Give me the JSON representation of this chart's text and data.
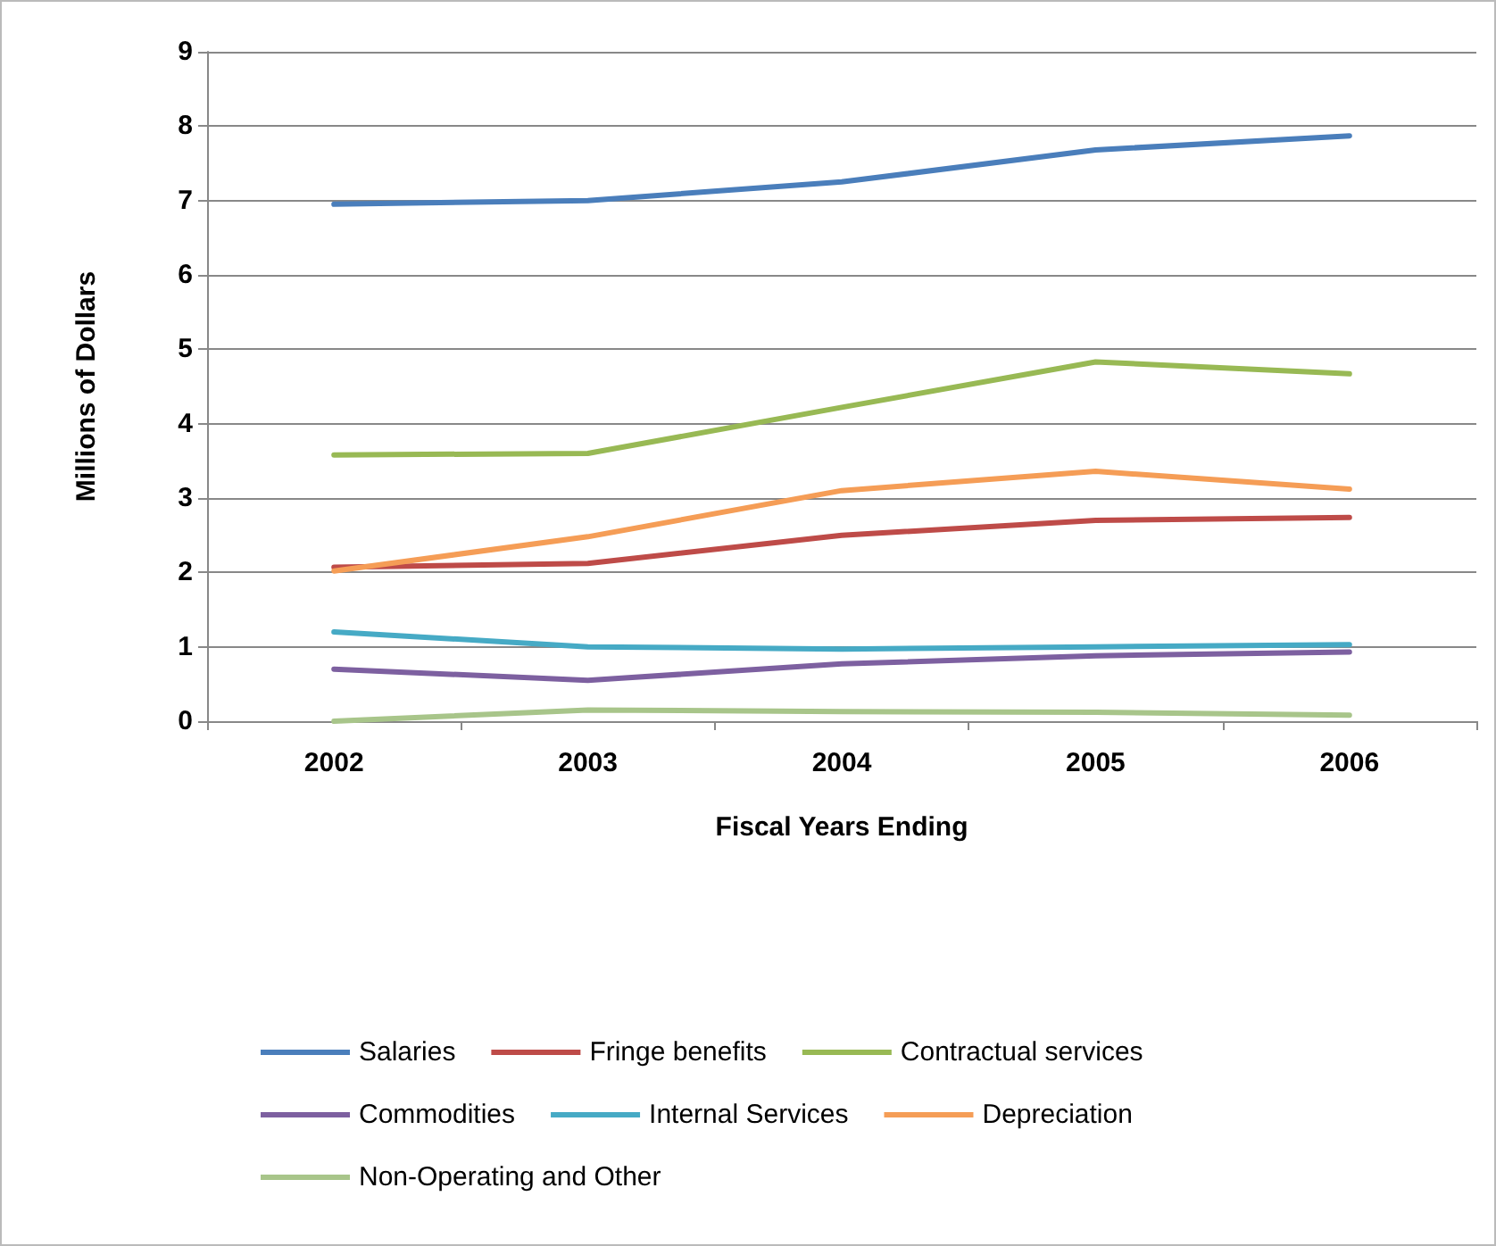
{
  "chart_data": {
    "type": "line",
    "xlabel": "Fiscal Years Ending",
    "ylabel": "Millions of Dollars",
    "categories": [
      "2002",
      "2003",
      "2004",
      "2005",
      "2006"
    ],
    "ylim": [
      0,
      9
    ],
    "yticks": [
      0,
      1,
      2,
      3,
      4,
      5,
      6,
      7,
      8,
      9
    ],
    "grid": "y",
    "legend": "bottom",
    "marker": "none",
    "line_style": "solid",
    "series": [
      {
        "name": "Salaries",
        "color": "#4a7ebb",
        "values": [
          6.95,
          7.0,
          7.25,
          7.68,
          7.87
        ]
      },
      {
        "name": "Fringe benefits",
        "color": "#be4b48",
        "values": [
          2.07,
          2.12,
          2.5,
          2.7,
          2.74
        ]
      },
      {
        "name": "Contractual services",
        "color": "#98b954",
        "values": [
          3.58,
          3.6,
          4.22,
          4.83,
          4.67
        ]
      },
      {
        "name": "Commodities",
        "color": "#7d60a0",
        "values": [
          0.7,
          0.55,
          0.77,
          0.88,
          0.93
        ]
      },
      {
        "name": "Internal Services",
        "color": "#46aac5",
        "values": [
          1.2,
          1.0,
          0.97,
          1.0,
          1.03
        ]
      },
      {
        "name": "Depreciation",
        "color": "#f59d56",
        "values": [
          2.02,
          2.48,
          3.1,
          3.36,
          3.12
        ]
      },
      {
        "name": "Non-Operating and Other",
        "color": "#a8c58a",
        "values": [
          0.0,
          0.15,
          0.13,
          0.12,
          0.08
        ]
      }
    ]
  }
}
